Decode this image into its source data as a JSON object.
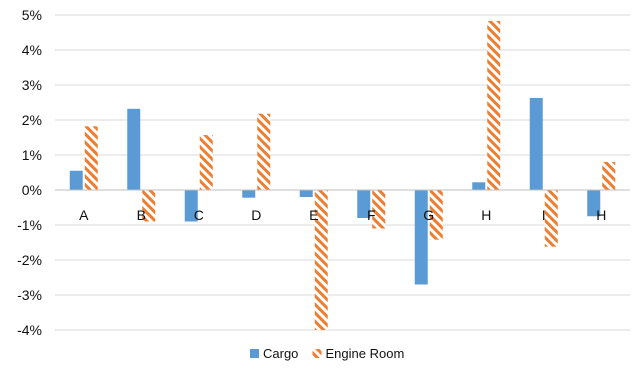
{
  "chart_data": {
    "type": "bar",
    "categories": [
      "A",
      "B",
      "C",
      "D",
      "E",
      "F",
      "G",
      "H",
      "I",
      "H"
    ],
    "series": [
      {
        "name": "Cargo",
        "values": [
          0.55,
          2.32,
          -0.9,
          -0.22,
          -0.2,
          -0.8,
          -2.7,
          0.22,
          2.63,
          -0.75
        ],
        "color": "#5b9bd5",
        "fill": "solid"
      },
      {
        "name": "Engine Room",
        "values": [
          1.82,
          -0.9,
          1.57,
          2.18,
          -4.0,
          -1.1,
          -1.42,
          4.83,
          -1.62,
          0.8
        ],
        "color": "#ed7d31",
        "fill": "diagonal-stripes"
      }
    ],
    "y_ticks": [
      "5%",
      "4%",
      "3%",
      "2%",
      "1%",
      "0%",
      "-1%",
      "-2%",
      "-3%",
      "-4%"
    ],
    "ylim": [
      -4,
      5
    ],
    "ylabel": "",
    "xlabel": "",
    "grid": true,
    "legend": "bottom"
  }
}
